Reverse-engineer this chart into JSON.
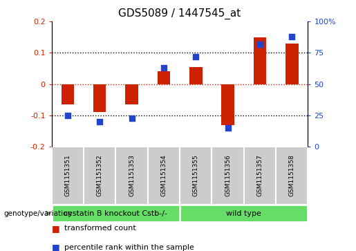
{
  "title": "GDS5089 / 1447545_at",
  "samples": [
    "GSM1151351",
    "GSM1151352",
    "GSM1151353",
    "GSM1151354",
    "GSM1151355",
    "GSM1151356",
    "GSM1151357",
    "GSM1151358"
  ],
  "transformed_count": [
    -0.065,
    -0.09,
    -0.065,
    0.04,
    0.055,
    -0.13,
    0.15,
    0.13
  ],
  "percentile_right": [
    25,
    20,
    23,
    63,
    72,
    15,
    82,
    88
  ],
  "ylim_left": [
    -0.2,
    0.2
  ],
  "ylim_right": [
    0,
    100
  ],
  "yticks_left": [
    -0.2,
    -0.1,
    0,
    0.1,
    0.2
  ],
  "yticks_right": [
    0,
    25,
    50,
    75,
    100
  ],
  "bar_color": "#cc2200",
  "dot_color": "#2244cc",
  "group1_label": "cystatin B knockout Cstb-/-",
  "group2_label": "wild type",
  "group1_indices": [
    0,
    1,
    2,
    3
  ],
  "group2_indices": [
    4,
    5,
    6,
    7
  ],
  "group_color": "#66dd66",
  "sample_box_color": "#cccccc",
  "genotype_label": "genotype/variation",
  "legend_bar_label": "transformed count",
  "legend_dot_label": "percentile rank within the sample",
  "bar_width": 0.4,
  "dot_size": 35,
  "title_fontsize": 11,
  "tick_fontsize": 8,
  "sample_fontsize": 6.5,
  "group_fontsize": 8,
  "legend_fontsize": 8
}
